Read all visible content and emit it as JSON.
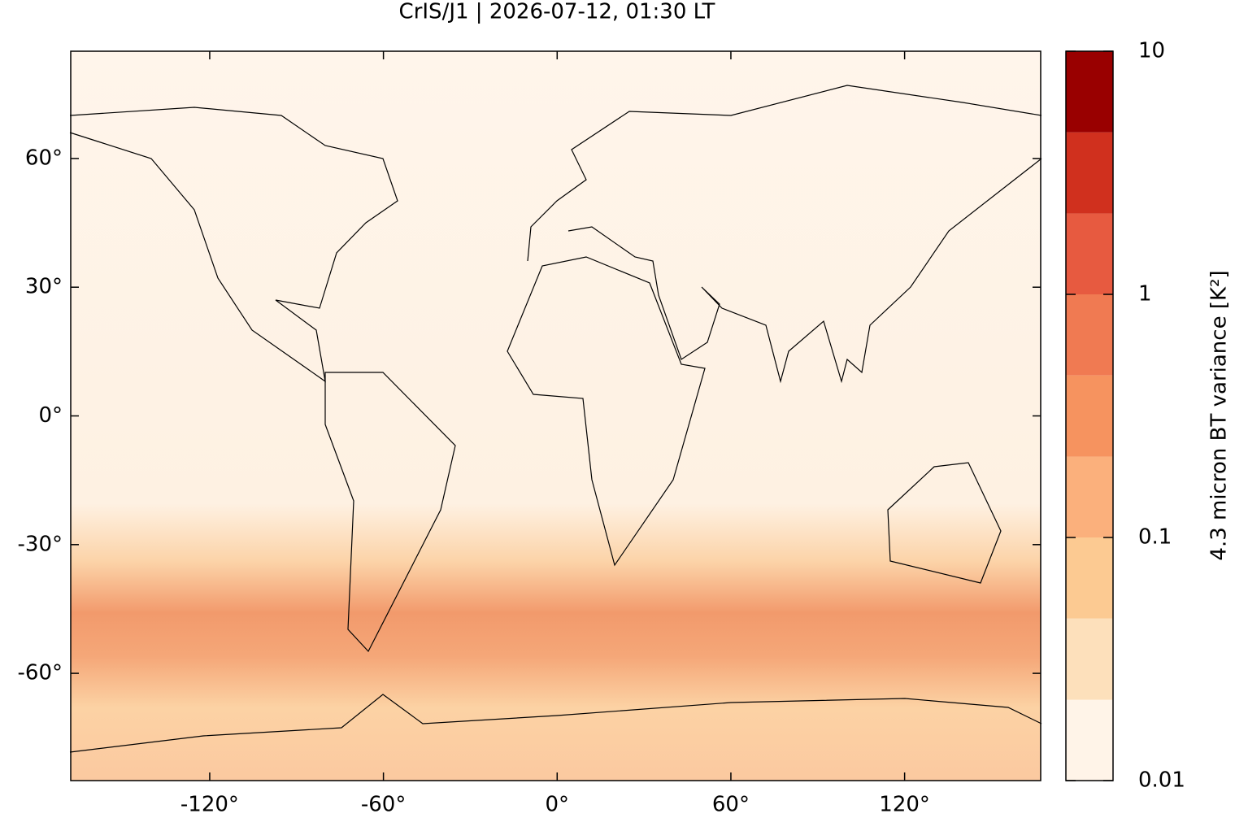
{
  "chart_data": {
    "type": "map",
    "title": "CrIS/J1 | 2026-07-12, 01:30 LT",
    "xlim": [
      -168,
      167
    ],
    "ylim": [
      -85,
      85
    ],
    "xticks": [
      {
        "value": -120,
        "label": "-120°"
      },
      {
        "value": -60,
        "label": "-60°"
      },
      {
        "value": 0,
        "label": "0°"
      },
      {
        "value": 60,
        "label": "60°"
      },
      {
        "value": 120,
        "label": "120°"
      }
    ],
    "yticks": [
      {
        "value": -60,
        "label": "-60°"
      },
      {
        "value": -30,
        "label": "-30°"
      },
      {
        "value": 0,
        "label": "0°"
      },
      {
        "value": 30,
        "label": "30°"
      },
      {
        "value": 60,
        "label": "60°"
      }
    ],
    "colorbar": {
      "label": "4.3 micron BT variance [K²]",
      "scale": "log",
      "lim": [
        0.01,
        10
      ],
      "ticks": [
        0.01,
        0.1,
        1,
        10
      ],
      "levels": [
        0.01,
        0.0215,
        0.0464,
        0.1,
        0.215,
        0.464,
        1,
        2.15,
        4.64,
        10
      ],
      "colors": [
        "#fff4e8",
        "#fde0bb",
        "#fcca92",
        "#fbb07c",
        "#f6935f",
        "#f07a52",
        "#e75a40",
        "#d0301e",
        "#990000"
      ]
    }
  }
}
